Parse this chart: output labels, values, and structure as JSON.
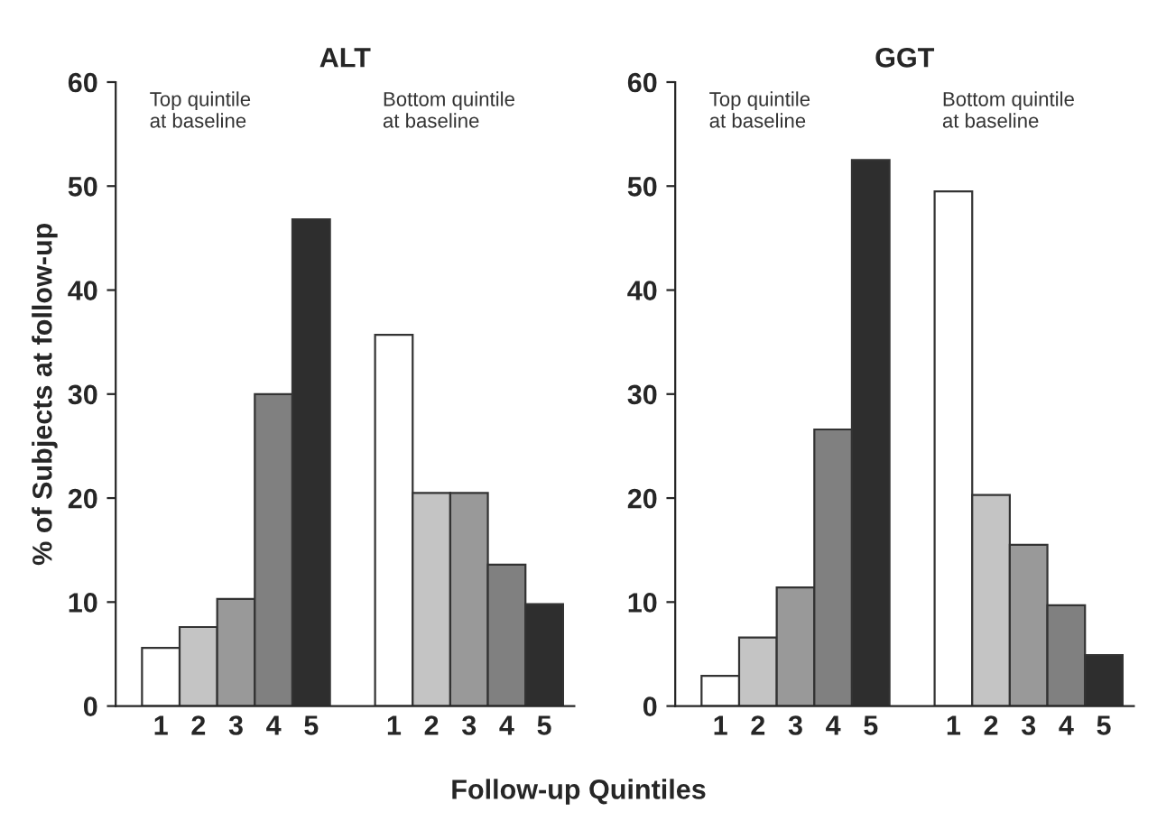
{
  "chart_data": [
    {
      "type": "bar",
      "title": "ALT",
      "ylabel": "% of Subjects at follow-up",
      "xlabel": "Follow-up Quintiles",
      "categories": [
        "1",
        "2",
        "3",
        "4",
        "5",
        "1",
        "2",
        "3",
        "4",
        "5"
      ],
      "values": [
        5.6,
        7.6,
        10.3,
        30,
        46.8,
        35.7,
        20.5,
        20.5,
        13.6,
        9.8
      ],
      "colors": [
        "#ffffff",
        "#c4c4c4",
        "#999999",
        "#808080",
        "#2e2e2e",
        "#ffffff",
        "#c4c4c4",
        "#999999",
        "#808080",
        "#2e2e2e"
      ],
      "ylim": [
        0,
        60
      ],
      "yticks": [
        0,
        10,
        20,
        30,
        40,
        50,
        60
      ],
      "grid": false,
      "legend": false,
      "annotations": [
        "Top quintile\nat baseline",
        "Bottom quintile\nat baseline"
      ]
    },
    {
      "type": "bar",
      "title": "GGT",
      "categories": [
        "1",
        "2",
        "3",
        "4",
        "5",
        "1",
        "2",
        "3",
        "4",
        "5"
      ],
      "values": [
        2.9,
        6.6,
        11.4,
        26.6,
        52.5,
        49.5,
        20.3,
        15.5,
        9.7,
        4.9
      ],
      "colors": [
        "#ffffff",
        "#c4c4c4",
        "#999999",
        "#808080",
        "#2e2e2e",
        "#ffffff",
        "#c4c4c4",
        "#999999",
        "#808080",
        "#2e2e2e"
      ],
      "ylim": [
        0,
        60
      ],
      "yticks": [
        0,
        10,
        20,
        30,
        40,
        50,
        60
      ],
      "grid": false,
      "legend": false,
      "annotations": [
        "Top quintile\nat baseline",
        "Bottom quintile\nat baseline"
      ]
    }
  ]
}
